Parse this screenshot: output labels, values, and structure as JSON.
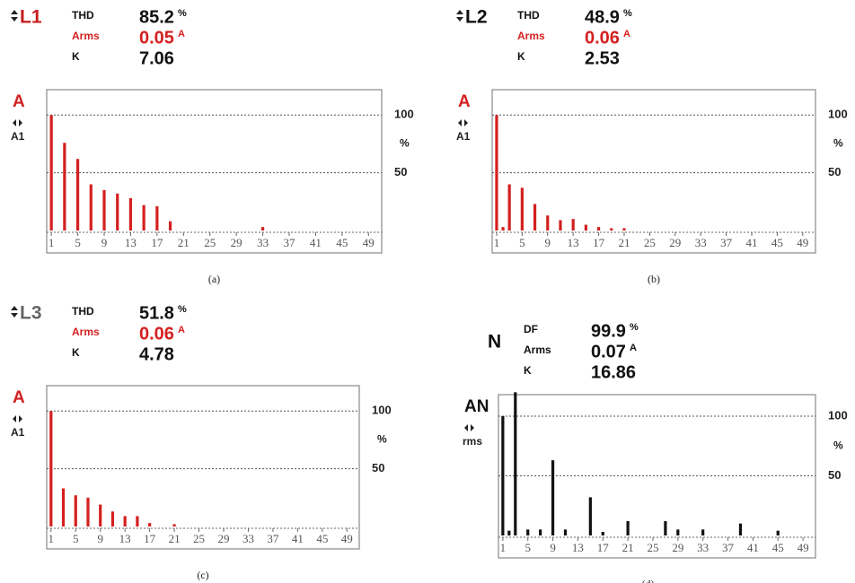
{
  "chart_data": [
    {
      "type": "bar",
      "phase": "L1",
      "label_color": "#c81e1e",
      "accent": "#d42020",
      "color": "#d42020",
      "readings": [
        {
          "label": "THD",
          "value": 85.2,
          "unit": "%"
        },
        {
          "label": "Arms",
          "value": 0.05,
          "unit": "A"
        },
        {
          "label": "K",
          "value": 7.06
        }
      ],
      "left_label": "A",
      "left_sub": "A1",
      "y_unit": "%",
      "x": [
        1,
        3,
        5,
        7,
        9,
        11,
        13,
        15,
        17,
        19,
        33
      ],
      "values": [
        100,
        76,
        62,
        40,
        35,
        32,
        28,
        22,
        21,
        8,
        3
      ],
      "xlim": [
        0.3,
        51
      ],
      "xticks": [
        1,
        5,
        9,
        13,
        17,
        21,
        25,
        29,
        33,
        37,
        41,
        45,
        49
      ],
      "ylim": [
        0,
        122
      ],
      "yticks": [
        100,
        50
      ],
      "grid": true,
      "caption": "(a)"
    },
    {
      "type": "bar",
      "phase": "L2",
      "label_color": "#111111",
      "accent": "#d42020",
      "color": "#d42020",
      "readings": [
        {
          "label": "THD",
          "value": 48.9,
          "unit": "%"
        },
        {
          "label": "Arms",
          "value": 0.06,
          "unit": "A"
        },
        {
          "label": "K",
          "value": 2.53
        }
      ],
      "left_label": "A",
      "left_sub": "A1",
      "y_unit": "%",
      "x": [
        1,
        2,
        3,
        5,
        7,
        9,
        11,
        13,
        15,
        17,
        19,
        21
      ],
      "values": [
        100,
        3,
        40,
        37,
        23,
        13,
        9,
        10,
        5,
        3,
        2,
        2
      ],
      "xlim": [
        0.3,
        51
      ],
      "xticks": [
        1,
        5,
        9,
        13,
        17,
        21,
        25,
        29,
        33,
        37,
        41,
        45,
        49
      ],
      "ylim": [
        0,
        122
      ],
      "yticks": [
        100,
        50
      ],
      "grid": true,
      "caption": "(b)"
    },
    {
      "type": "bar",
      "phase": "L3",
      "label_color": "#666666",
      "accent": "#d42020",
      "color": "#d42020",
      "readings": [
        {
          "label": "THD",
          "value": 51.8,
          "unit": "%"
        },
        {
          "label": "Arms",
          "value": 0.06,
          "unit": "A"
        },
        {
          "label": "K",
          "value": 4.78
        }
      ],
      "left_label": "A",
      "left_sub": "A1",
      "y_unit": "%",
      "x": [
        1,
        3,
        5,
        7,
        9,
        11,
        13,
        15,
        17,
        21
      ],
      "values": [
        100,
        33,
        27,
        25,
        19,
        13,
        9,
        9,
        3,
        2
      ],
      "xlim": [
        0.3,
        51
      ],
      "xticks": [
        1,
        5,
        9,
        13,
        17,
        21,
        25,
        29,
        33,
        37,
        41,
        45,
        49
      ],
      "ylim": [
        0,
        122
      ],
      "yticks": [
        100,
        50
      ],
      "grid": true,
      "caption": "(c)"
    },
    {
      "type": "bar",
      "phase": "N",
      "label_color": "#111111",
      "accent": "#111111",
      "color": "#111111",
      "readings": [
        {
          "label": "DF",
          "value": 99.9,
          "unit": "%"
        },
        {
          "label": "Arms",
          "value": 0.07,
          "unit": "A"
        },
        {
          "label": "K",
          "value": 16.86
        }
      ],
      "left_label": "AN",
      "left_sub": "rms",
      "y_unit": "%",
      "x": [
        1,
        2,
        3,
        5,
        7,
        9,
        11,
        15,
        17,
        21,
        27,
        29,
        33,
        39,
        45
      ],
      "values": [
        100,
        4,
        120,
        5,
        5,
        63,
        5,
        32,
        3,
        12,
        12,
        5,
        5,
        10,
        4
      ],
      "xlim": [
        0.3,
        51
      ],
      "xticks": [
        1,
        5,
        9,
        13,
        17,
        21,
        25,
        29,
        33,
        37,
        41,
        45,
        49
      ],
      "ylim": [
        0,
        118
      ],
      "yticks": [
        100,
        50
      ],
      "grid": true,
      "caption": "(d)"
    }
  ]
}
